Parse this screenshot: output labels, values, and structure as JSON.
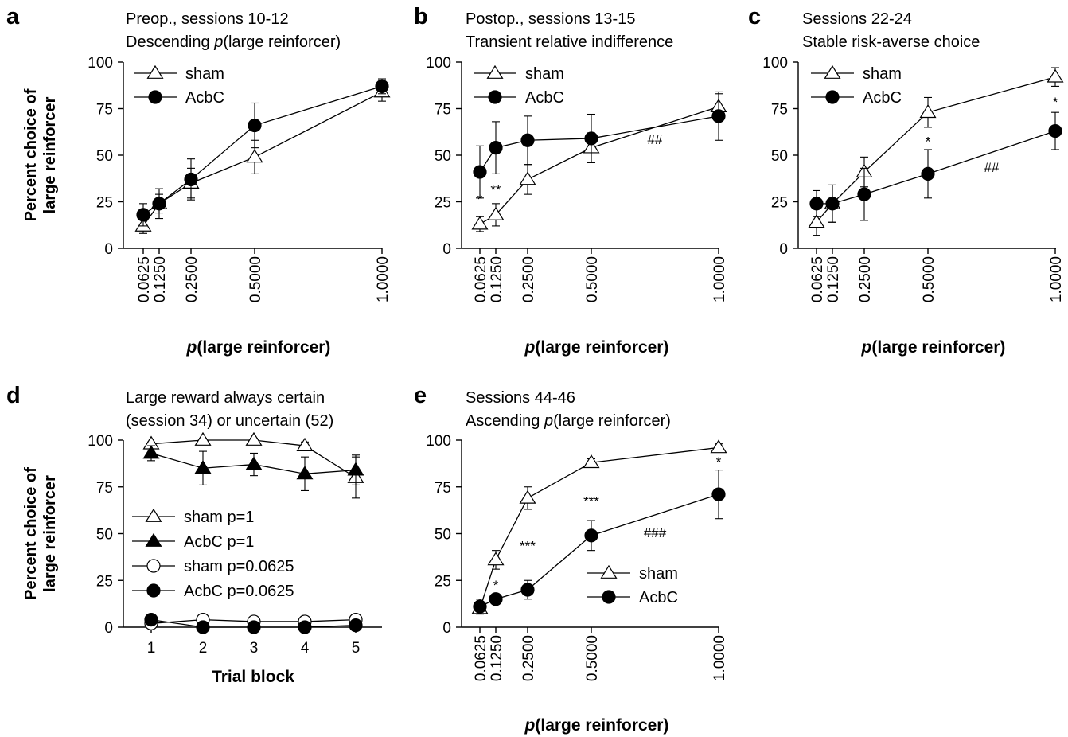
{
  "chart_data": [
    {
      "panel": "a",
      "type": "line",
      "title_lines": [
        "Preop., sessions 10-12",
        "Descending ",
        "p",
        "(large reinforcer)"
      ],
      "xlabel": "(large reinforcer)",
      "xlabel_italic": "p",
      "ylabel_lines": [
        "Percent choice of",
        "large reinforcer"
      ],
      "x": [
        0.0625,
        0.125,
        0.25,
        0.5,
        1.0
      ],
      "x_tick_labels": [
        "0.0625",
        "0.1250",
        "0.2500",
        "0.5000",
        "1.0000"
      ],
      "ylim": [
        0,
        100
      ],
      "y_ticks": [
        "0",
        "25",
        "50",
        "75",
        "100"
      ],
      "legend_position": "top-left",
      "series": [
        {
          "name": "sham",
          "marker": "open-triangle",
          "values": [
            12,
            24,
            35,
            49,
            84
          ],
          "errors": [
            4,
            5,
            8,
            9,
            5
          ]
        },
        {
          "name": "AcbC",
          "marker": "filled-circle",
          "values": [
            18,
            24,
            37,
            66,
            87
          ],
          "errors": [
            6,
            8,
            11,
            12,
            4
          ]
        }
      ],
      "annotations": []
    },
    {
      "panel": "b",
      "type": "line",
      "title_lines": [
        "Postop., sessions 13-15",
        "Transient relative indifference"
      ],
      "xlabel": "(large reinforcer)",
      "xlabel_italic": "p",
      "x": [
        0.0625,
        0.125,
        0.25,
        0.5,
        1.0
      ],
      "x_tick_labels": [
        "0.0625",
        "0.1250",
        "0.2500",
        "0.5000",
        "1.0000"
      ],
      "ylim": [
        0,
        100
      ],
      "y_ticks": [
        "0",
        "25",
        "50",
        "75",
        "100"
      ],
      "legend_position": "top-left",
      "series": [
        {
          "name": "sham",
          "marker": "open-triangle",
          "values": [
            13,
            18,
            37,
            54,
            76
          ],
          "errors": [
            4,
            6,
            8,
            8,
            7
          ]
        },
        {
          "name": "AcbC",
          "marker": "filled-circle",
          "values": [
            41,
            54,
            58,
            59,
            71
          ],
          "errors": [
            14,
            14,
            13,
            13,
            13
          ]
        }
      ],
      "annotations": [
        {
          "text": "*",
          "x": 0.0625,
          "y": 24
        },
        {
          "text": "**",
          "x": 0.125,
          "y": 29
        },
        {
          "text": "##",
          "x": 0.75,
          "y": 56
        }
      ]
    },
    {
      "panel": "c",
      "type": "line",
      "title_lines": [
        "Sessions 22-24",
        "Stable risk-averse choice"
      ],
      "xlabel": "(large reinforcer)",
      "xlabel_italic": "p",
      "x": [
        0.0625,
        0.125,
        0.25,
        0.5,
        1.0
      ],
      "x_tick_labels": [
        "0.0625",
        "0.1250",
        "0.2500",
        "0.5000",
        "1.0000"
      ],
      "ylim": [
        0,
        100
      ],
      "y_ticks": [
        "0",
        "25",
        "50",
        "75",
        "100"
      ],
      "legend_position": "top-left",
      "series": [
        {
          "name": "sham",
          "marker": "open-triangle",
          "values": [
            14,
            24,
            41,
            73,
            92
          ],
          "errors": [
            7,
            10,
            8,
            8,
            5
          ]
        },
        {
          "name": "AcbC",
          "marker": "filled-circle",
          "values": [
            24,
            24,
            29,
            40,
            63
          ],
          "errors": [
            7,
            10,
            14,
            13,
            10
          ]
        }
      ],
      "annotations": [
        {
          "text": "*",
          "x": 0.5,
          "y": 55
        },
        {
          "text": "*",
          "x": 1.0,
          "y": 76
        },
        {
          "text": "##",
          "x": 0.75,
          "y": 41
        }
      ]
    },
    {
      "panel": "d",
      "type": "line",
      "title_lines": [
        "Large reward always certain",
        "(session 34) or uncertain (52)"
      ],
      "xlabel": "Trial block",
      "ylabel_lines": [
        "Percent choice of",
        "large reinforcer"
      ],
      "x": [
        1,
        2,
        3,
        4,
        5
      ],
      "x_tick_labels": [
        "1",
        "2",
        "3",
        "4",
        "5"
      ],
      "ylim": [
        0,
        100
      ],
      "y_ticks": [
        "0",
        "25",
        "50",
        "75",
        "100"
      ],
      "legend_position": "center-left",
      "series": [
        {
          "name": "sham p=1",
          "marker": "open-triangle",
          "values": [
            98,
            100,
            100,
            97,
            80
          ],
          "errors": [
            1,
            1,
            1,
            2,
            11
          ]
        },
        {
          "name": "AcbC p=1",
          "marker": "filled-triangle",
          "values": [
            93,
            85,
            87,
            82,
            84
          ],
          "errors": [
            4,
            9,
            6,
            9,
            8
          ]
        },
        {
          "name": "sham p=0.0625",
          "marker": "open-circle",
          "values": [
            2,
            4,
            3,
            3,
            4
          ],
          "errors": [
            0,
            0,
            0,
            0,
            0
          ]
        },
        {
          "name": "AcbC p=0.0625",
          "marker": "filled-circle",
          "values": [
            4,
            0,
            0,
            0,
            1
          ],
          "errors": [
            0,
            0,
            0,
            0,
            0
          ]
        }
      ],
      "annotations": []
    },
    {
      "panel": "e",
      "type": "line",
      "title_lines": [
        "Sessions 44-46",
        "Ascending ",
        "p",
        "(large reinforcer)"
      ],
      "xlabel": "(large reinforcer)",
      "xlabel_italic": "p",
      "x": [
        0.0625,
        0.125,
        0.25,
        0.5,
        1.0
      ],
      "x_tick_labels": [
        "0.0625",
        "0.1250",
        "0.2500",
        "0.5000",
        "1.0000"
      ],
      "ylim": [
        0,
        100
      ],
      "y_ticks": [
        "0",
        "25",
        "50",
        "75",
        "100"
      ],
      "legend_position": "lower-right",
      "series": [
        {
          "name": "sham",
          "marker": "open-triangle",
          "values": [
            10,
            36,
            69,
            88,
            96
          ],
          "errors": [
            3,
            5,
            6,
            2,
            2
          ]
        },
        {
          "name": "AcbC",
          "marker": "filled-circle",
          "values": [
            11,
            15,
            20,
            49,
            71
          ],
          "errors": [
            4,
            2,
            5,
            8,
            13
          ]
        }
      ],
      "annotations": [
        {
          "text": "*",
          "x": 0.125,
          "y": 20
        },
        {
          "text": "***",
          "x": 0.25,
          "y": 41
        },
        {
          "text": "***",
          "x": 0.5,
          "y": 65
        },
        {
          "text": "###",
          "x": 0.75,
          "y": 48
        },
        {
          "text": "*",
          "x": 1.0,
          "y": 86
        }
      ]
    }
  ]
}
